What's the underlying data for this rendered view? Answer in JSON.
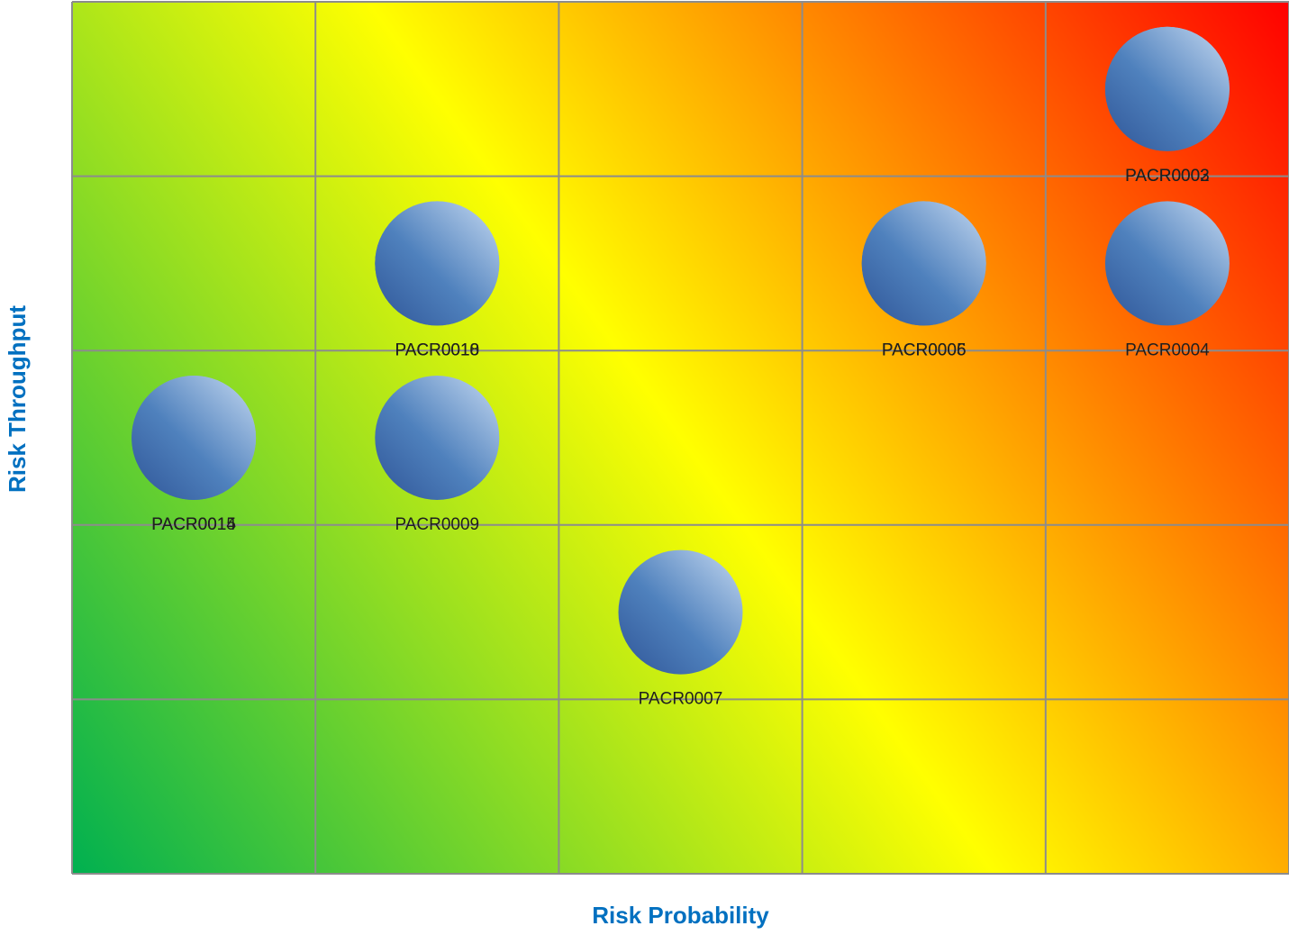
{
  "chart_data": {
    "type": "scatter",
    "subtype": "risk-matrix bubble chart",
    "xlabel": "Risk Probability",
    "ylabel": "Risk Throughput",
    "xlim": [
      0,
      5
    ],
    "ylim": [
      0,
      5
    ],
    "grid": true,
    "grid_color": "#8c8c8c",
    "background_gradient": [
      "#00b050",
      "#ffff00",
      "#ff0000"
    ],
    "axis_title_color": "#0070c0",
    "bubble_colors": [
      "#2f5597",
      "#4f81bd",
      "#c5d9f1"
    ],
    "points": [
      {
        "label": "PACR0003",
        "x": 5,
        "y": 5
      },
      {
        "label": "PACR0002",
        "x": 5,
        "y": 5
      },
      {
        "label": "PACR0004",
        "x": 5,
        "y": 4
      },
      {
        "label": "PACR0005",
        "x": 4,
        "y": 4
      },
      {
        "label": "PACR0006",
        "x": 4,
        "y": 4
      },
      {
        "label": "PACR0010",
        "x": 2,
        "y": 4
      },
      {
        "label": "PACR0018",
        "x": 2,
        "y": 4
      },
      {
        "label": "PACR0009",
        "x": 2,
        "y": 3
      },
      {
        "label": "PACR0014",
        "x": 1,
        "y": 3
      },
      {
        "label": "PACR0015",
        "x": 1,
        "y": 3
      },
      {
        "label": "PACR0007",
        "x": 3,
        "y": 2
      }
    ]
  }
}
